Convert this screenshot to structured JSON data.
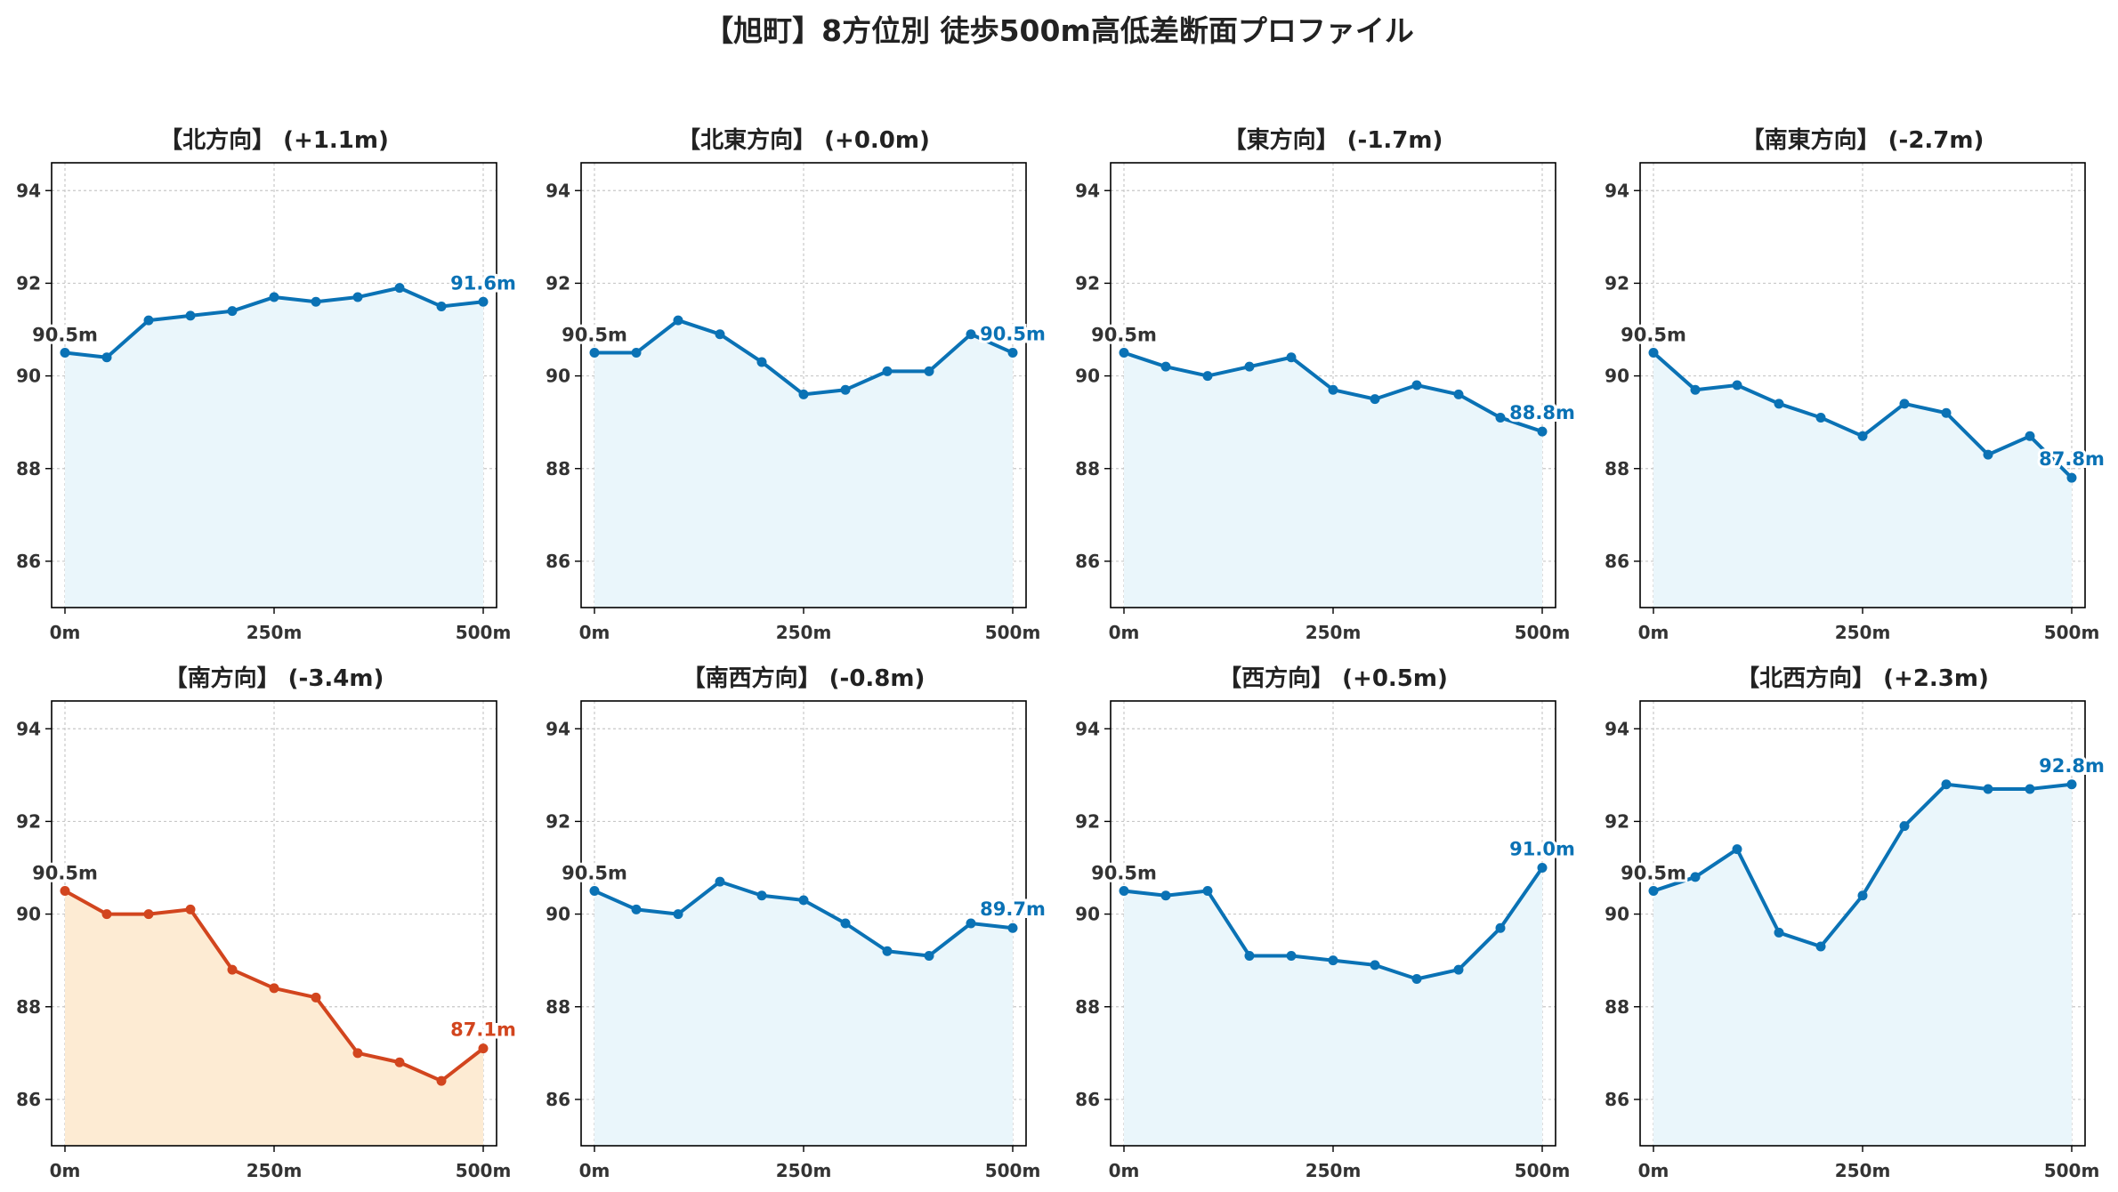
{
  "title": "【旭町】8方位別 徒歩500m高低差断面プロファイル",
  "colors": {
    "normal_line": "#0a72b5",
    "normal_fill": "#eaf6fb",
    "highlight_line": "#d2451e",
    "highlight_fill": "#fdebd3",
    "start_label": "#333333",
    "grid": "#c8c8c8"
  },
  "chart_data": [
    {
      "type": "area",
      "title": "【北方向】 (+1.1m)",
      "x": [
        0,
        50,
        100,
        150,
        200,
        250,
        300,
        350,
        400,
        450,
        500
      ],
      "y": [
        90.5,
        90.4,
        91.2,
        91.3,
        91.4,
        91.7,
        91.6,
        91.7,
        91.9,
        91.5,
        91.6
      ],
      "start_label": "90.5m",
      "end_label": "91.6m",
      "highlight": false,
      "xticks": [
        "0m",
        "250m",
        "500m"
      ],
      "ylim": [
        85,
        94.6
      ],
      "yticks": [
        86,
        88,
        90,
        92,
        94
      ],
      "grid": true
    },
    {
      "type": "area",
      "title": "【北東方向】 (+0.0m)",
      "x": [
        0,
        50,
        100,
        150,
        200,
        250,
        300,
        350,
        400,
        450,
        500
      ],
      "y": [
        90.5,
        90.5,
        91.2,
        90.9,
        90.3,
        89.6,
        89.7,
        90.1,
        90.1,
        90.9,
        90.5
      ],
      "start_label": "90.5m",
      "end_label": "90.5m",
      "highlight": false,
      "xticks": [
        "0m",
        "250m",
        "500m"
      ],
      "ylim": [
        85,
        94.6
      ],
      "yticks": [
        86,
        88,
        90,
        92,
        94
      ],
      "grid": true
    },
    {
      "type": "area",
      "title": "【東方向】 (-1.7m)",
      "x": [
        0,
        50,
        100,
        150,
        200,
        250,
        300,
        350,
        400,
        450,
        500
      ],
      "y": [
        90.5,
        90.2,
        90.0,
        90.2,
        90.4,
        89.7,
        89.5,
        89.8,
        89.6,
        89.1,
        88.8
      ],
      "start_label": "90.5m",
      "end_label": "88.8m",
      "highlight": false,
      "xticks": [
        "0m",
        "250m",
        "500m"
      ],
      "ylim": [
        85,
        94.6
      ],
      "yticks": [
        86,
        88,
        90,
        92,
        94
      ],
      "grid": true
    },
    {
      "type": "area",
      "title": "【南東方向】 (-2.7m)",
      "x": [
        0,
        50,
        100,
        150,
        200,
        250,
        300,
        350,
        400,
        450,
        500
      ],
      "y": [
        90.5,
        89.7,
        89.8,
        89.4,
        89.1,
        88.7,
        89.4,
        89.2,
        88.3,
        88.7,
        87.8
      ],
      "start_label": "90.5m",
      "end_label": "87.8m",
      "highlight": false,
      "xticks": [
        "0m",
        "250m",
        "500m"
      ],
      "ylim": [
        85,
        94.6
      ],
      "yticks": [
        86,
        88,
        90,
        92,
        94
      ],
      "grid": true
    },
    {
      "type": "area",
      "title": "【南方向】 (-3.4m)",
      "x": [
        0,
        50,
        100,
        150,
        200,
        250,
        300,
        350,
        400,
        450,
        500
      ],
      "y": [
        90.5,
        90.0,
        90.0,
        90.1,
        88.8,
        88.4,
        88.2,
        87.0,
        86.8,
        86.4,
        87.1
      ],
      "start_label": "90.5m",
      "end_label": "87.1m",
      "highlight": true,
      "xticks": [
        "0m",
        "250m",
        "500m"
      ],
      "ylim": [
        85,
        94.6
      ],
      "yticks": [
        86,
        88,
        90,
        92,
        94
      ],
      "grid": true
    },
    {
      "type": "area",
      "title": "【南西方向】 (-0.8m)",
      "x": [
        0,
        50,
        100,
        150,
        200,
        250,
        300,
        350,
        400,
        450,
        500
      ],
      "y": [
        90.5,
        90.1,
        90.0,
        90.7,
        90.4,
        90.3,
        89.8,
        89.2,
        89.1,
        89.8,
        89.7
      ],
      "start_label": "90.5m",
      "end_label": "89.7m",
      "highlight": false,
      "xticks": [
        "0m",
        "250m",
        "500m"
      ],
      "ylim": [
        85,
        94.6
      ],
      "yticks": [
        86,
        88,
        90,
        92,
        94
      ],
      "grid": true
    },
    {
      "type": "area",
      "title": "【西方向】 (+0.5m)",
      "x": [
        0,
        50,
        100,
        150,
        200,
        250,
        300,
        350,
        400,
        450,
        500
      ],
      "y": [
        90.5,
        90.4,
        90.5,
        89.1,
        89.1,
        89.0,
        88.9,
        88.6,
        88.8,
        89.7,
        91.0
      ],
      "start_label": "90.5m",
      "end_label": "91.0m",
      "highlight": false,
      "xticks": [
        "0m",
        "250m",
        "500m"
      ],
      "ylim": [
        85,
        94.6
      ],
      "yticks": [
        86,
        88,
        90,
        92,
        94
      ],
      "grid": true
    },
    {
      "type": "area",
      "title": "【北西方向】 (+2.3m)",
      "x": [
        0,
        50,
        100,
        150,
        200,
        250,
        300,
        350,
        400,
        450,
        500
      ],
      "y": [
        90.5,
        90.8,
        91.4,
        89.6,
        89.3,
        90.4,
        91.9,
        92.8,
        92.7,
        92.7,
        92.8
      ],
      "start_label": "90.5m",
      "end_label": "92.8m",
      "highlight": false,
      "xticks": [
        "0m",
        "250m",
        "500m"
      ],
      "ylim": [
        85,
        94.6
      ],
      "yticks": [
        86,
        88,
        90,
        92,
        94
      ],
      "grid": true
    }
  ]
}
